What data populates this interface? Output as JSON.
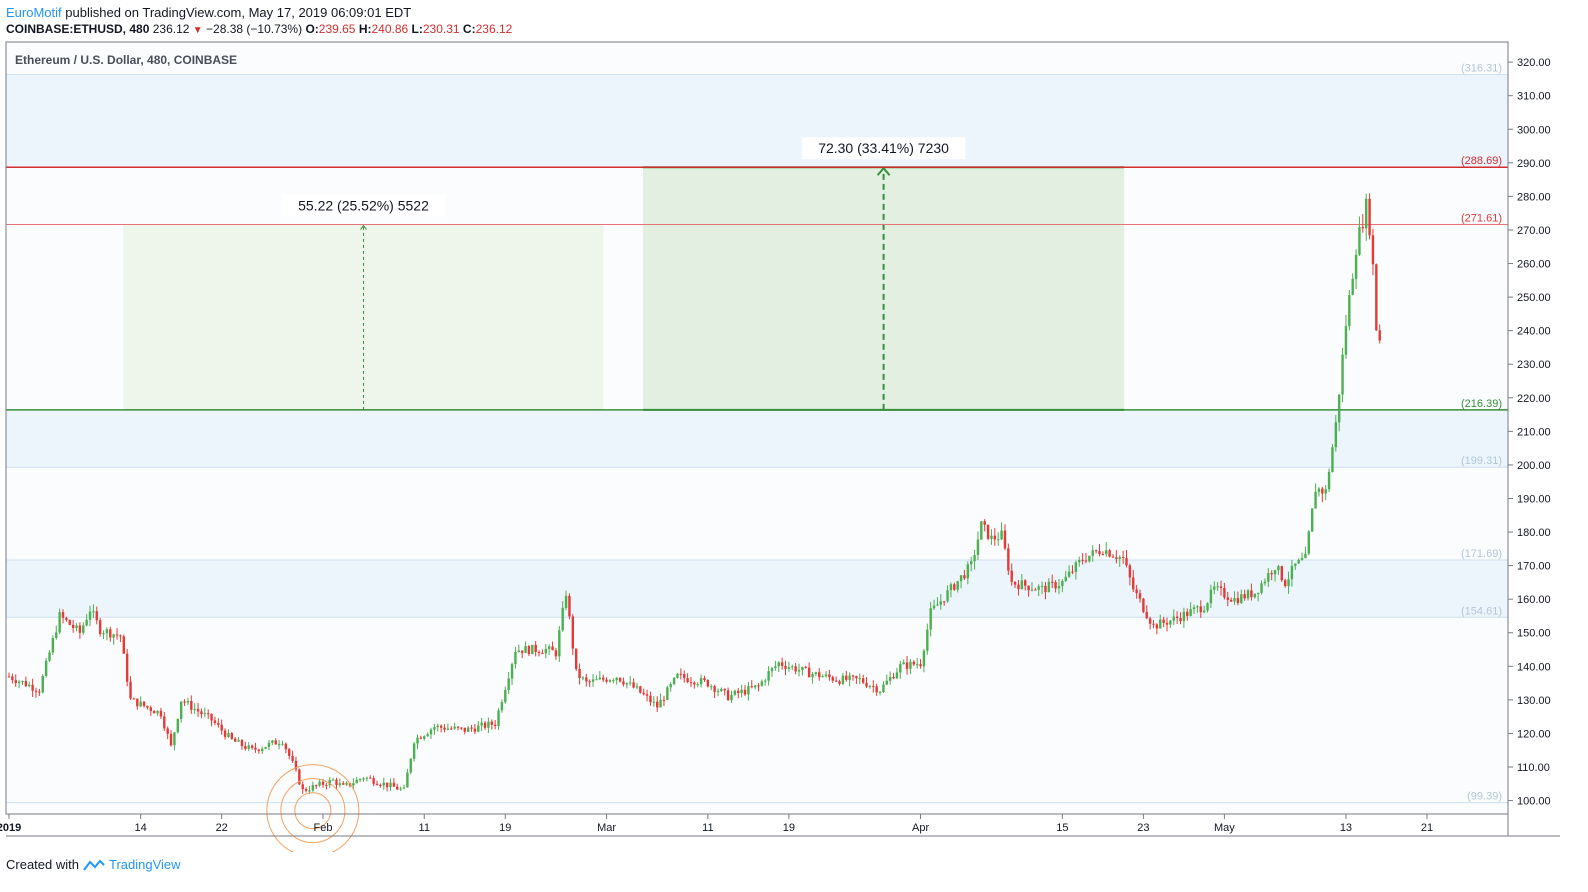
{
  "header": {
    "author": "EuroMotif",
    "published_text": "published on TradingView.com, May 17, 2019 06:09:01 EDT",
    "symbol": "COINBASE:ETHUSD, 480",
    "last": "236.12",
    "change": "−28.38 (−10.73%)",
    "o_label": "O:",
    "o_value": "239.65",
    "h_label": "H:",
    "h_value": "240.86",
    "l_label": "L:",
    "l_value": "230.31",
    "c_label": "C:",
    "c_value": "236.12"
  },
  "footer": {
    "created_with": "Created with",
    "brand": "TradingView"
  },
  "colors": {
    "up": "#4caf50",
    "down": "#e53935",
    "resistance": "#d32f2f",
    "support": "#388e3c",
    "zone": "#e8f1fb",
    "axis_text": "#131722",
    "level_text": "#b2c6d9"
  },
  "chart_data": {
    "type": "candlestick",
    "title": "Ethereum / U.S. Dollar, 480, COINBASE",
    "ylim": [
      96,
      326
    ],
    "y_ticks": [
      "320.00",
      "310.00",
      "300.00",
      "290.00",
      "280.00",
      "270.00",
      "260.00",
      "250.00",
      "240.00",
      "230.00",
      "220.00",
      "210.00",
      "200.00",
      "190.00",
      "180.00",
      "170.00",
      "160.00",
      "150.00",
      "140.00",
      "130.00",
      "120.00",
      "110.00",
      "100.00"
    ],
    "x_tick_labels": [
      "2019",
      "14",
      "22",
      "Feb",
      "11",
      "19",
      "Mar",
      "11",
      "19",
      "Apr",
      "15",
      "23",
      "May",
      "13",
      "21"
    ],
    "x_tick_days": [
      0,
      13,
      21,
      31,
      41,
      49,
      59,
      69,
      77,
      90,
      104,
      112,
      120,
      132,
      140
    ],
    "x_range_days": [
      0,
      148
    ],
    "horizontal_levels": [
      {
        "value": 316.31,
        "label": "(316.31)",
        "style": "zone-edge"
      },
      {
        "value": 288.69,
        "label": "(288.69)",
        "style": "resistance"
      },
      {
        "value": 271.61,
        "label": "(271.61)",
        "style": "resistance-thin"
      },
      {
        "value": 216.39,
        "label": "(216.39)",
        "style": "support"
      },
      {
        "value": 199.31,
        "label": "(199.31)",
        "style": "zone-edge"
      },
      {
        "value": 171.69,
        "label": "(171.69)",
        "style": "zone-edge"
      },
      {
        "value": 154.61,
        "label": "(154.61)",
        "style": "zone-edge"
      },
      {
        "value": 99.39,
        "label": "(99.39)",
        "style": "zone-edge"
      }
    ],
    "zones": [
      {
        "from": 288.69,
        "to": 316.31
      },
      {
        "from": 199.31,
        "to": 216.39
      },
      {
        "from": 154.61,
        "to": 171.69
      }
    ],
    "measurements": [
      {
        "label": "55.22 (25.52%) 5522",
        "x_start_day": 11.3,
        "x_end_day": 58.7,
        "from": 216.39,
        "to": 271.61,
        "emphasis": "light"
      },
      {
        "label": "72.30 (33.41%) 7230",
        "x_start_day": 62.6,
        "x_end_day": 110.1,
        "from": 216.39,
        "to": 288.69,
        "emphasis": "strong"
      }
    ],
    "ohlc_key_points": [
      [
        0,
        137
      ],
      [
        3,
        133
      ],
      [
        5,
        155
      ],
      [
        7,
        150
      ],
      [
        8,
        157
      ],
      [
        9,
        151
      ],
      [
        11,
        149
      ],
      [
        12,
        130
      ],
      [
        15,
        126
      ],
      [
        16,
        116
      ],
      [
        17,
        130
      ],
      [
        20,
        124
      ],
      [
        22,
        118
      ],
      [
        24,
        115
      ],
      [
        27,
        118
      ],
      [
        28,
        111
      ],
      [
        29,
        103
      ],
      [
        30,
        104
      ],
      [
        32,
        106
      ],
      [
        33,
        104
      ],
      [
        35,
        107
      ],
      [
        37,
        105
      ],
      [
        39,
        103
      ],
      [
        40,
        118
      ],
      [
        42,
        122
      ],
      [
        45,
        121
      ],
      [
        48,
        123
      ],
      [
        50,
        145
      ],
      [
        53,
        145
      ],
      [
        54,
        144
      ],
      [
        55,
        162
      ],
      [
        56,
        138
      ],
      [
        57,
        135
      ],
      [
        60,
        137
      ],
      [
        62,
        133
      ],
      [
        64,
        128
      ],
      [
        66,
        137
      ],
      [
        69,
        135
      ],
      [
        71,
        131
      ],
      [
        74,
        134
      ],
      [
        75,
        138
      ],
      [
        76,
        141
      ],
      [
        79,
        138
      ],
      [
        82,
        136
      ],
      [
        84,
        136
      ],
      [
        86,
        133
      ],
      [
        88,
        140
      ],
      [
        90,
        141
      ],
      [
        91,
        156
      ],
      [
        93,
        163
      ],
      [
        95,
        170
      ],
      [
        96,
        182
      ],
      [
        97,
        178
      ],
      [
        98,
        179
      ],
      [
        99,
        165
      ],
      [
        102,
        163
      ],
      [
        104,
        165
      ],
      [
        106,
        172
      ],
      [
        108,
        175
      ],
      [
        110,
        172
      ],
      [
        111,
        163
      ],
      [
        113,
        152
      ],
      [
        115,
        154
      ],
      [
        118,
        158
      ],
      [
        119,
        163
      ],
      [
        121,
        160
      ],
      [
        123,
        162
      ],
      [
        125,
        170
      ],
      [
        126,
        165
      ],
      [
        127,
        170
      ],
      [
        128,
        172
      ],
      [
        129,
        193
      ],
      [
        130,
        192
      ],
      [
        131,
        212
      ],
      [
        132,
        242
      ],
      [
        133,
        265
      ],
      [
        134,
        277
      ],
      [
        134.5,
        268
      ],
      [
        135,
        241
      ],
      [
        135.5,
        236
      ]
    ],
    "grid": false,
    "last_price": 236.12
  }
}
